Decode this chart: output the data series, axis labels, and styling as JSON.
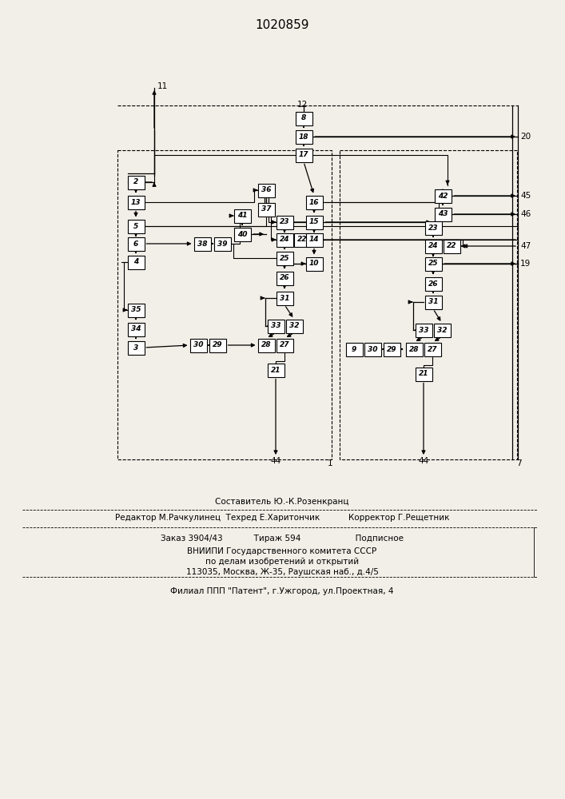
{
  "title": "1020859",
  "bg_color": "#f2efe8",
  "box_color": "#ffffff",
  "box_edge": "#000000",
  "line_color": "#000000",
  "text_color": "#000000",
  "composer_line": "Составитель Ю.-К.Розенкранц",
  "editor_line": "Редактор М.Рачкулинец  Техред Е.Харитончик           Корректор Г.Рещетник",
  "order_line": "Заказ 3904/43            Тираж 594                     Подписное",
  "vnipi_line1": "ВНИИПИ Государственного комитета СССР",
  "vnipi_line2": "по делам изобретений и открытий",
  "vnipi_line3": "113035, Москва, Ж-35, Раушская наб., д.4/5",
  "filial_line": "Филиал ППП \"Патент\", г.Ужгород, ул.Проектная, 4"
}
